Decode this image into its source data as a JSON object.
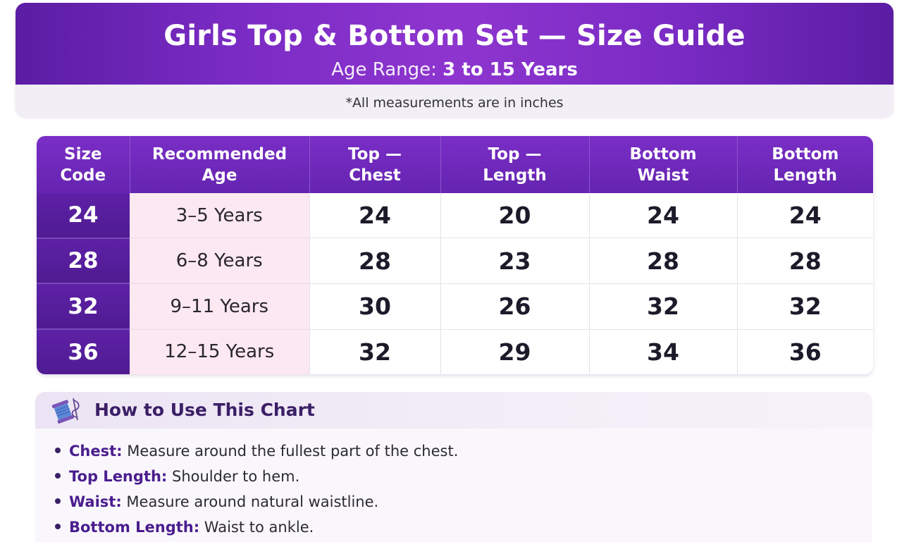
{
  "header": {
    "title": "Girls Top & Bottom Set — Size Guide",
    "age_range_label": "Age Range:",
    "age_range_value": "3 to 15 Years",
    "note": "*All measurements are in inches"
  },
  "table": {
    "columns": [
      [
        "Size",
        "Code"
      ],
      [
        "Recommended",
        "Age"
      ],
      [
        "Top —",
        "Chest"
      ],
      [
        "Top —",
        "Length"
      ],
      [
        "Bottom",
        "Waist"
      ],
      [
        "Bottom",
        "Length"
      ]
    ],
    "rows": [
      {
        "code": "24",
        "age": "3–5 Years",
        "chest": "24",
        "top_length": "20",
        "waist": "24",
        "bottom_length": "24"
      },
      {
        "code": "28",
        "age": "6–8 Years",
        "chest": "28",
        "top_length": "23",
        "waist": "28",
        "bottom_length": "28"
      },
      {
        "code": "32",
        "age": "9–11 Years",
        "chest": "30",
        "top_length": "26",
        "waist": "32",
        "bottom_length": "32"
      },
      {
        "code": "36",
        "age": "12–15 Years",
        "chest": "32",
        "top_length": "29",
        "waist": "34",
        "bottom_length": "36"
      }
    ]
  },
  "howto": {
    "icon": "thread-spool-needle-icon",
    "title": "How to Use This Chart",
    "items": [
      {
        "term": "Chest:",
        "text": " Measure around the fullest part of the chest."
      },
      {
        "term": "Top Length:",
        "text": " Shoulder to hem."
      },
      {
        "term": "Waist:",
        "text": " Measure around natural waistline."
      },
      {
        "term": "Bottom Length:",
        "text": " Waist to ankle."
      }
    ]
  }
}
